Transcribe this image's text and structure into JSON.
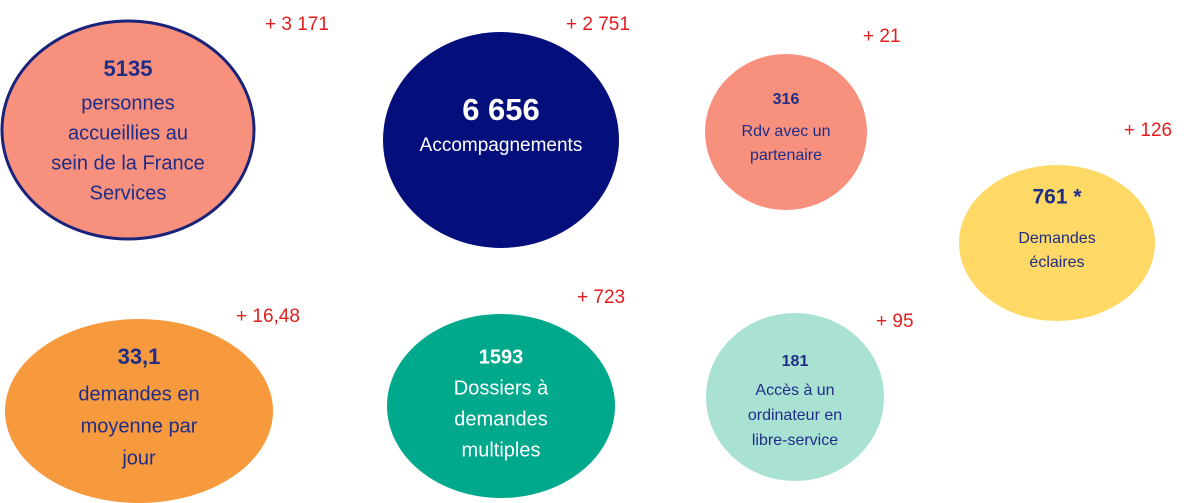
{
  "bubbles": [
    {
      "value": "5135",
      "label": [
        "personnes",
        "accueillies au",
        "sein de la France",
        "Services"
      ],
      "delta": "+ 3 171"
    },
    {
      "value": "6 656",
      "label": [
        "Accompagnements"
      ],
      "delta": "+ 2 751"
    },
    {
      "value": "316",
      "label": [
        "Rdv avec un",
        "partenaire"
      ],
      "delta": "+ 21"
    },
    {
      "value": "761 *",
      "label": [
        "Demandes",
        "éclaires"
      ],
      "delta": "+ 126"
    },
    {
      "value": "33,1",
      "label": [
        "demandes en",
        "moyenne par",
        "jour"
      ],
      "delta": "+ 16,48"
    },
    {
      "value": "1593",
      "label": [
        "Dossiers à",
        "demandes",
        "multiples"
      ],
      "delta": "+ 723"
    },
    {
      "value": "181",
      "label": [
        "Accès à un",
        "ordinateur en",
        "libre-service"
      ],
      "delta": "+ 95"
    }
  ]
}
